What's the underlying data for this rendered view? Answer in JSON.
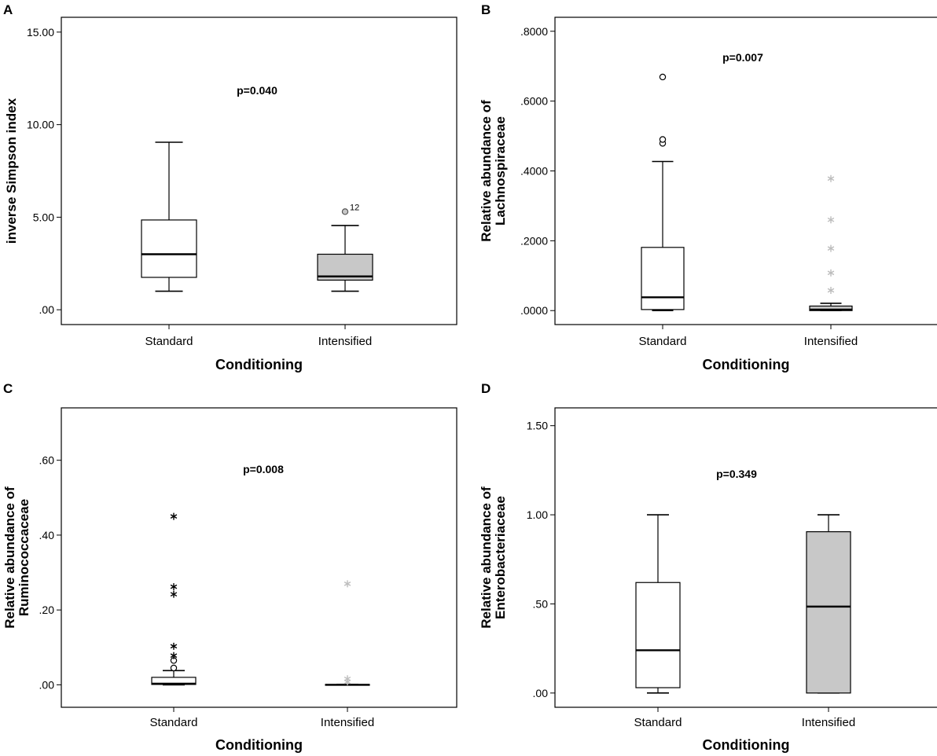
{
  "figure": {
    "x_axis_title": "Conditioning",
    "categories": [
      "Standard",
      "Intensified"
    ]
  },
  "colors": {
    "standard_fill": "#ffffff",
    "intensified_fill": "#c8c8c8",
    "outlier_standard": "#000000",
    "outlier_intensified": "#bdbdbd",
    "stroke": "#000000"
  },
  "chart_data": [
    {
      "panel": "A",
      "type": "boxplot",
      "ylabel_lines": [
        "inverse Simpson index"
      ],
      "xlabel": "Conditioning",
      "categories": [
        "Standard",
        "Intensified"
      ],
      "ylim": [
        -0.8,
        15.8
      ],
      "yticks": [
        0,
        5,
        10,
        15
      ],
      "ytick_labels": [
        ".00",
        "5.00",
        "10.00",
        "15.00"
      ],
      "annotation": "p=0.040",
      "series": [
        {
          "name": "Standard",
          "fill": "white",
          "whisker_low": 1.0,
          "q1": 1.75,
          "median": 3.0,
          "q3": 4.85,
          "whisker_high": 9.05,
          "outliers": [],
          "extremes": []
        },
        {
          "name": "Intensified",
          "fill": "gray",
          "whisker_low": 1.0,
          "q1": 1.6,
          "median": 1.8,
          "q3": 3.0,
          "whisker_high": 4.55,
          "outliers": [
            {
              "value": 5.3,
              "label": "12"
            }
          ],
          "extremes": []
        }
      ]
    },
    {
      "panel": "B",
      "type": "boxplot",
      "ylabel_lines": [
        "Relative abundance of",
        "Lachnospiraceae"
      ],
      "xlabel": "Conditioning",
      "categories": [
        "Standard",
        "Intensified"
      ],
      "ylim": [
        -0.04,
        0.84
      ],
      "yticks": [
        0,
        0.2,
        0.4,
        0.6,
        0.8
      ],
      "ytick_labels": [
        ".0000",
        ".2000",
        ".4000",
        ".6000",
        ".8000"
      ],
      "annotation": "p=0.007",
      "series": [
        {
          "name": "Standard",
          "fill": "white",
          "whisker_low": 0.0,
          "q1": 0.003,
          "median": 0.038,
          "q3": 0.181,
          "whisker_high": 0.427,
          "outliers": [
            {
              "value": 0.479
            },
            {
              "value": 0.49
            },
            {
              "value": 0.669
            }
          ],
          "extremes": []
        },
        {
          "name": "Intensified",
          "fill": "gray",
          "whisker_low": 0.0,
          "q1": 0.0,
          "median": 0.003,
          "q3": 0.013,
          "whisker_high": 0.021,
          "outliers": [],
          "extremes": [
            {
              "value": 0.058
            },
            {
              "value": 0.108
            },
            {
              "value": 0.178
            },
            {
              "value": 0.26
            },
            {
              "value": 0.378
            }
          ]
        }
      ]
    },
    {
      "panel": "C",
      "type": "boxplot",
      "ylabel_lines": [
        "Relative abundance of",
        "Ruminococcaceae"
      ],
      "xlabel": "Conditioning",
      "categories": [
        "Standard",
        "Intensified"
      ],
      "ylim": [
        -0.06,
        0.74
      ],
      "yticks": [
        0,
        0.2,
        0.4,
        0.6
      ],
      "ytick_labels": [
        ".00",
        ".20",
        ".40",
        ".60"
      ],
      "annotation": "p=0.008",
      "series": [
        {
          "name": "Standard",
          "fill": "white",
          "whisker_low": 0.0,
          "q1": 0.001,
          "median": 0.003,
          "q3": 0.02,
          "whisker_high": 0.038,
          "outliers": [
            {
              "value": 0.045
            },
            {
              "value": 0.065
            }
          ],
          "extremes": [
            {
              "value": 0.078
            },
            {
              "value": 0.103
            },
            {
              "value": 0.242
            },
            {
              "value": 0.262
            },
            {
              "value": 0.45
            }
          ]
        },
        {
          "name": "Intensified",
          "fill": "gray",
          "whisker_low": 0.0,
          "q1": 0.0,
          "median": 0.0,
          "q3": 0.001,
          "whisker_high": 0.001,
          "outliers": [],
          "extremes": [
            {
              "value": 0.008
            },
            {
              "value": 0.016
            },
            {
              "value": 0.27
            }
          ]
        }
      ]
    },
    {
      "panel": "D",
      "type": "boxplot",
      "ylabel_lines": [
        "Relative abundance of",
        "Enterobacteriaceae"
      ],
      "xlabel": "Conditioning",
      "categories": [
        "Standard",
        "Intensified"
      ],
      "ylim": [
        -0.08,
        1.6
      ],
      "yticks": [
        0,
        0.5,
        1.0,
        1.5
      ],
      "ytick_labels": [
        ".00",
        ".50",
        "1.00",
        "1.50"
      ],
      "annotation": "p=0.349",
      "series": [
        {
          "name": "Standard",
          "fill": "white",
          "whisker_low": 0.0,
          "q1": 0.03,
          "median": 0.24,
          "q3": 0.62,
          "whisker_high": 1.0,
          "outliers": [],
          "extremes": []
        },
        {
          "name": "Intensified",
          "fill": "gray",
          "whisker_low": 0.0,
          "q1": 0.0,
          "median": 0.485,
          "q3": 0.905,
          "whisker_high": 1.0,
          "outliers": [],
          "extremes": []
        }
      ]
    }
  ]
}
